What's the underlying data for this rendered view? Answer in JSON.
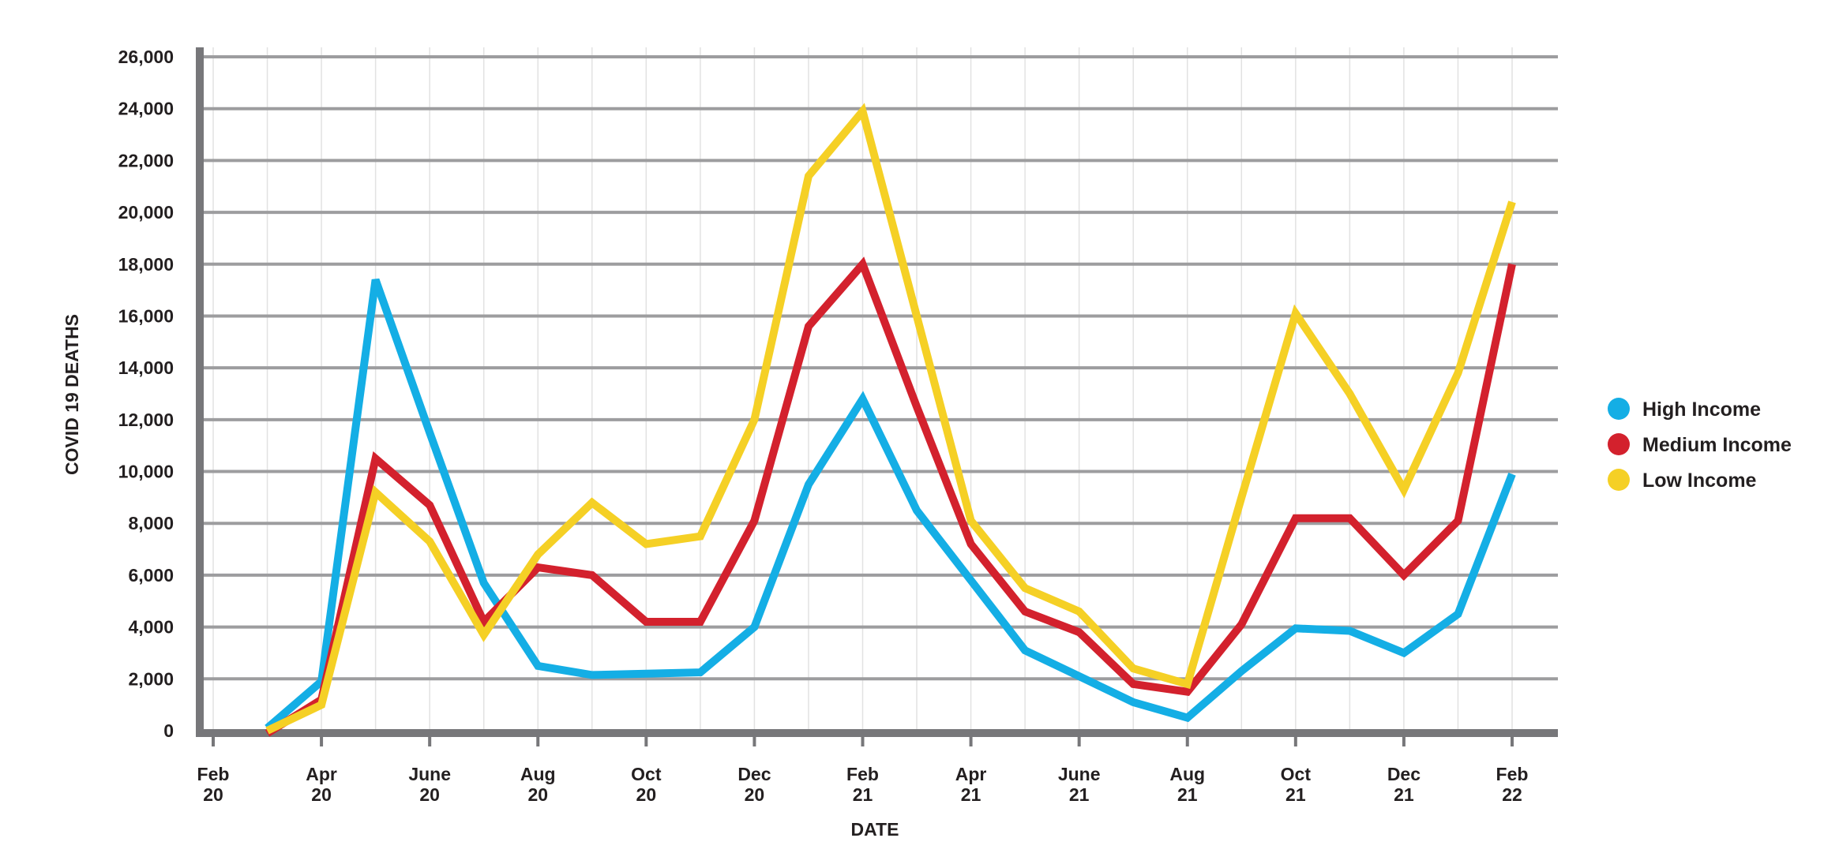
{
  "chart_data": {
    "type": "line",
    "title": "",
    "xlabel": "DATE",
    "ylabel": "COVID 19 DEATHS",
    "ylim": [
      0,
      26000
    ],
    "yticks": [
      0,
      2000,
      4000,
      6000,
      8000,
      10000,
      12000,
      14000,
      16000,
      18000,
      20000,
      22000,
      24000,
      26000
    ],
    "ytick_labels": [
      "0",
      "2,000",
      "4,000",
      "6,000",
      "8,000",
      "10,000",
      "12,000",
      "14,000",
      "16,000",
      "18,000",
      "20,000",
      "22,000",
      "24,000",
      "26,000"
    ],
    "xlim": [
      0,
      24
    ],
    "xticks": [
      {
        "pos": 0,
        "month": "Feb",
        "year": "20"
      },
      {
        "pos": 2,
        "month": "Apr",
        "year": "20"
      },
      {
        "pos": 4,
        "month": "June",
        "year": "20"
      },
      {
        "pos": 6,
        "month": "Aug",
        "year": "20"
      },
      {
        "pos": 8,
        "month": "Oct",
        "year": "20"
      },
      {
        "pos": 10,
        "month": "Dec",
        "year": "20"
      },
      {
        "pos": 12,
        "month": "Feb",
        "year": "21"
      },
      {
        "pos": 14,
        "month": "Apr",
        "year": "21"
      },
      {
        "pos": 16,
        "month": "June",
        "year": "21"
      },
      {
        "pos": 18,
        "month": "Aug",
        "year": "21"
      },
      {
        "pos": 20,
        "month": "Oct",
        "year": "21"
      },
      {
        "pos": 22,
        "month": "Dec",
        "year": "21"
      },
      {
        "pos": 24,
        "month": "Feb",
        "year": "22"
      }
    ],
    "grid": true,
    "legend_position": "right",
    "x": [
      1,
      2,
      3,
      4,
      5,
      6,
      7,
      8,
      9,
      10,
      11,
      12,
      13,
      14,
      15,
      16,
      17,
      18,
      19,
      20,
      21,
      22,
      23,
      24
    ],
    "series": [
      {
        "name": "High Income",
        "color": "#14aee5",
        "values": [
          100,
          1900,
          17400,
          11500,
          5700,
          2500,
          2150,
          2200,
          2250,
          4000,
          9500,
          12800,
          8500,
          5800,
          3100,
          2100,
          1100,
          500,
          2300,
          3950,
          3850,
          3000,
          4500,
          9900
        ]
      },
      {
        "name": "Medium Income",
        "color": "#d3212d",
        "values": [
          -100,
          1200,
          10500,
          8700,
          4200,
          6300,
          6000,
          4200,
          4200,
          8100,
          15600,
          18000,
          12500,
          7200,
          4600,
          3800,
          1800,
          1500,
          4100,
          8200,
          8200,
          6000,
          8100,
          18000
        ]
      },
      {
        "name": "Low Income",
        "color": "#f5d025",
        "values": [
          0,
          1000,
          9200,
          7300,
          3700,
          6800,
          8800,
          7200,
          7500,
          12000,
          21400,
          23900,
          16000,
          8100,
          5500,
          4600,
          2400,
          1800,
          9000,
          16100,
          13000,
          9300,
          13800,
          20400
        ]
      }
    ]
  }
}
